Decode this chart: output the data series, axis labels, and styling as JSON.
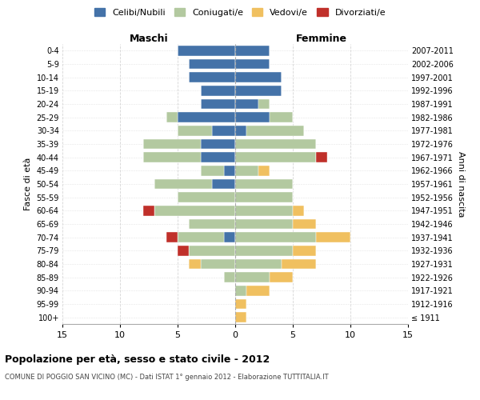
{
  "age_groups": [
    "100+",
    "95-99",
    "90-94",
    "85-89",
    "80-84",
    "75-79",
    "70-74",
    "65-69",
    "60-64",
    "55-59",
    "50-54",
    "45-49",
    "40-44",
    "35-39",
    "30-34",
    "25-29",
    "20-24",
    "15-19",
    "10-14",
    "5-9",
    "0-4"
  ],
  "birth_years": [
    "≤ 1911",
    "1912-1916",
    "1917-1921",
    "1922-1926",
    "1927-1931",
    "1932-1936",
    "1937-1941",
    "1942-1946",
    "1947-1951",
    "1952-1956",
    "1957-1961",
    "1962-1966",
    "1967-1971",
    "1972-1976",
    "1977-1981",
    "1982-1986",
    "1987-1991",
    "1992-1996",
    "1997-2001",
    "2002-2006",
    "2007-2011"
  ],
  "colors": {
    "celibi": "#4472a8",
    "coniugati": "#b3c9a0",
    "vedovi": "#f0c060",
    "divorziati": "#c0302a"
  },
  "males": {
    "celibi": [
      0,
      0,
      0,
      0,
      0,
      0,
      1,
      0,
      0,
      0,
      2,
      1,
      3,
      3,
      2,
      5,
      3,
      3,
      4,
      4,
      5
    ],
    "coniugati": [
      0,
      0,
      0,
      1,
      3,
      4,
      4,
      4,
      7,
      5,
      5,
      2,
      5,
      5,
      3,
      1,
      0,
      0,
      0,
      0,
      0
    ],
    "vedovi": [
      0,
      0,
      0,
      0,
      1,
      0,
      0,
      0,
      0,
      0,
      0,
      0,
      0,
      0,
      0,
      0,
      0,
      0,
      0,
      0,
      0
    ],
    "divorziati": [
      0,
      0,
      0,
      0,
      0,
      1,
      1,
      0,
      1,
      0,
      0,
      0,
      0,
      0,
      0,
      0,
      0,
      0,
      0,
      0,
      0
    ]
  },
  "females": {
    "nubili": [
      0,
      0,
      0,
      0,
      0,
      0,
      0,
      0,
      0,
      0,
      0,
      0,
      0,
      0,
      1,
      3,
      2,
      4,
      4,
      3,
      3
    ],
    "coniugate": [
      0,
      0,
      1,
      3,
      4,
      5,
      7,
      5,
      5,
      5,
      5,
      2,
      7,
      7,
      5,
      2,
      1,
      0,
      0,
      0,
      0
    ],
    "vedove": [
      1,
      1,
      2,
      2,
      3,
      2,
      3,
      2,
      1,
      0,
      0,
      1,
      0,
      0,
      0,
      0,
      0,
      0,
      0,
      0,
      0
    ],
    "divorziate": [
      0,
      0,
      0,
      0,
      0,
      0,
      0,
      0,
      0,
      0,
      0,
      0,
      1,
      0,
      0,
      0,
      0,
      0,
      0,
      0,
      0
    ]
  },
  "title_main": "Popolazione per età, sesso e stato civile - 2012",
  "title_sub": "COMUNE DI POGGIO SAN VICINO (MC) - Dati ISTAT 1° gennaio 2012 - Elaborazione TUTTITALIA.IT",
  "xlabel_left": "Maschi",
  "xlabel_right": "Femmine",
  "ylabel": "Fasce di età",
  "ylabel_right": "Anni di nascita",
  "xlim": 15,
  "xticks": [
    -15,
    -10,
    -5,
    0,
    5,
    10,
    15
  ],
  "xtick_labels": [
    "15",
    "10",
    "5",
    "0",
    "5",
    "10",
    "15"
  ],
  "legend_labels": [
    "Celibi/Nubili",
    "Coniugati/e",
    "Vedovi/e",
    "Divorziati/e"
  ],
  "bg_color": "#ffffff",
  "grid_color": "#cccccc",
  "bar_height": 0.75
}
